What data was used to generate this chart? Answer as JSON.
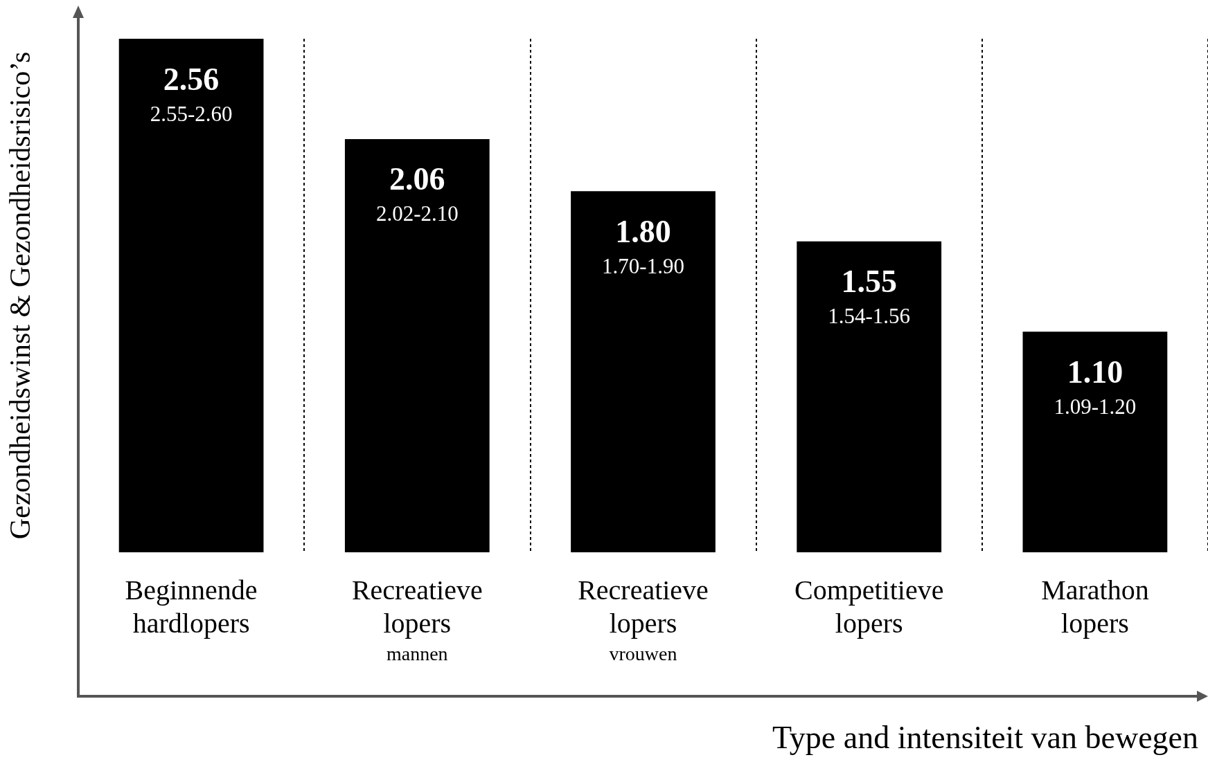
{
  "chart_data": {
    "type": "bar",
    "ylabel": "Gezondheidswinst & Gezondheidsrisico’s",
    "xlabel": "Type and intensiteit van bewegen",
    "categories": [
      "Beginnende\nhardlopers",
      "Recreatieve\nlopers\nmannen",
      "Recreatieve\nlopers\nvrouwen",
      "Competitieve\nlopers",
      "Marathon\nlopers"
    ],
    "values": [
      2.56,
      2.06,
      1.8,
      1.55,
      1.1
    ],
    "color": "#000000",
    "grid": "x",
    "value_labels": [
      "2.56",
      "2.06",
      "1.80",
      "1.55",
      "1.10"
    ],
    "annotations": [
      "2.55-2.60",
      "2.02-2.10",
      "1.70-1.90",
      "1.54-1.56",
      "1.09-1.20"
    ]
  }
}
